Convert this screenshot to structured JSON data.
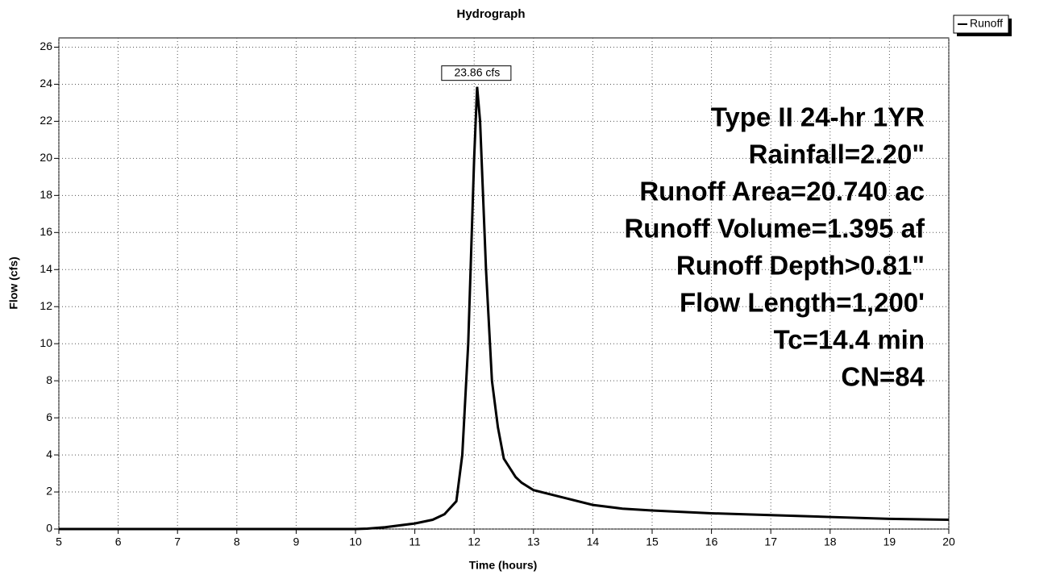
{
  "chart_data": {
    "type": "line",
    "title": "Hydrograph",
    "xlabel": "Time (hours)",
    "ylabel": "Flow (cfs)",
    "x": [
      5,
      6,
      7,
      8,
      9,
      10,
      10.2,
      10.5,
      11,
      11.3,
      11.5,
      11.7,
      11.8,
      11.9,
      12.0,
      12.05,
      12.1,
      12.2,
      12.3,
      12.4,
      12.5,
      12.7,
      12.8,
      13,
      13.5,
      14,
      14.5,
      15,
      16,
      17,
      18,
      19,
      20
    ],
    "series": [
      {
        "name": "Runoff",
        "color": "#000000",
        "values": [
          0,
          0,
          0,
          0,
          0,
          0,
          0.02,
          0.1,
          0.3,
          0.5,
          0.8,
          1.5,
          4,
          10,
          20,
          23.86,
          22,
          14,
          8,
          5.5,
          3.8,
          2.8,
          2.5,
          2.1,
          1.7,
          1.3,
          1.1,
          1.0,
          0.85,
          0.75,
          0.65,
          0.55,
          0.5
        ]
      }
    ],
    "xlim": [
      5,
      20
    ],
    "xticks": [
      5,
      6,
      7,
      8,
      9,
      10,
      11,
      12,
      13,
      14,
      15,
      16,
      17,
      18,
      19,
      20
    ],
    "ylim": [
      0,
      26.5
    ],
    "yticks": [
      0,
      2,
      4,
      6,
      8,
      10,
      12,
      14,
      16,
      18,
      20,
      22,
      24,
      26
    ],
    "grid": true,
    "legend": "upper right",
    "annotations": [
      {
        "text": "23.86 cfs",
        "x": 12.05,
        "y": 23.86
      }
    ],
    "notes": [
      "Type II 24-hr 1YR",
      "Rainfall=2.20\"",
      "Runoff Area=20.740 ac",
      "Runoff Volume=1.395 af",
      "Runoff Depth>0.81\"",
      "Flow Length=1,200'",
      "Tc=14.4 min",
      "CN=84"
    ]
  }
}
